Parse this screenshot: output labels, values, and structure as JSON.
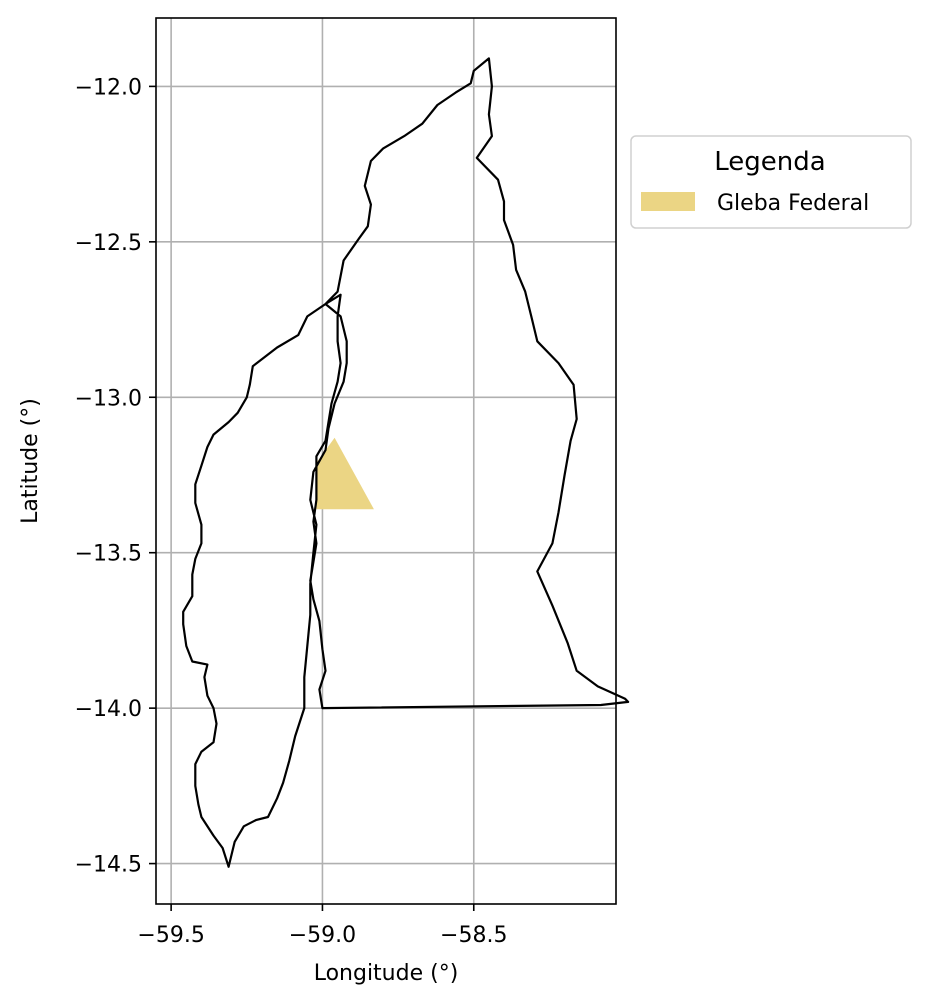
{
  "chart_data": {
    "type": "map",
    "xlabel": "Longitude (°)",
    "ylabel": "Latitude (°)",
    "xlim": [
      -59.55,
      -58.03
    ],
    "ylim": [
      -14.63,
      -11.78
    ],
    "xticks": [
      -59.5,
      -59.0,
      -58.5
    ],
    "xtick_labels": [
      "−59.5",
      "−59.0",
      "−58.5"
    ],
    "yticks": [
      -12.0,
      -12.5,
      -13.0,
      -13.5,
      -14.0,
      -14.5
    ],
    "ytick_labels": [
      "−12.0",
      "−12.5",
      "−13.0",
      "−13.5",
      "−14.0",
      "−14.5"
    ],
    "grid": true,
    "legend": {
      "title": "Legenda",
      "placement": "outside-right-top",
      "entries": [
        {
          "label": "Gleba Federal",
          "color": "#ebd584"
        }
      ]
    },
    "layers": [
      {
        "label": "Gleba Federal",
        "type": "polygon",
        "fill": "#ebd584",
        "points": [
          [
            -58.96,
            -13.13
          ],
          [
            -58.83,
            -13.36
          ],
          [
            -59.02,
            -13.36
          ],
          [
            -59.02,
            -13.21
          ]
        ]
      },
      {
        "type": "outline",
        "stroke": "#000000",
        "points": [
          [
            -59.31,
            -14.51
          ],
          [
            -59.33,
            -14.45
          ],
          [
            -59.36,
            -14.41
          ],
          [
            -59.4,
            -14.35
          ],
          [
            -59.41,
            -14.31
          ],
          [
            -59.42,
            -14.25
          ],
          [
            -59.42,
            -14.18
          ],
          [
            -59.4,
            -14.14
          ],
          [
            -59.36,
            -14.11
          ],
          [
            -59.35,
            -14.05
          ],
          [
            -59.36,
            -14.0
          ],
          [
            -59.38,
            -13.96
          ],
          [
            -59.39,
            -13.9
          ],
          [
            -59.38,
            -13.86
          ],
          [
            -59.43,
            -13.85
          ],
          [
            -59.45,
            -13.8
          ],
          [
            -59.46,
            -13.73
          ],
          [
            -59.46,
            -13.69
          ],
          [
            -59.43,
            -13.64
          ],
          [
            -59.43,
            -13.57
          ],
          [
            -59.42,
            -13.52
          ],
          [
            -59.4,
            -13.47
          ],
          [
            -59.4,
            -13.41
          ],
          [
            -59.42,
            -13.34
          ],
          [
            -59.42,
            -13.28
          ],
          [
            -59.4,
            -13.22
          ],
          [
            -59.38,
            -13.16
          ],
          [
            -59.36,
            -13.12
          ],
          [
            -59.31,
            -13.08
          ],
          [
            -59.28,
            -13.05
          ],
          [
            -59.25,
            -13.0
          ],
          [
            -59.24,
            -12.96
          ],
          [
            -59.23,
            -12.9
          ],
          [
            -59.19,
            -12.87
          ],
          [
            -59.15,
            -12.84
          ],
          [
            -59.08,
            -12.8
          ],
          [
            -59.05,
            -12.74
          ],
          [
            -58.99,
            -12.7
          ],
          [
            -58.95,
            -12.66
          ],
          [
            -58.93,
            -12.56
          ],
          [
            -58.88,
            -12.49
          ],
          [
            -58.85,
            -12.45
          ],
          [
            -58.84,
            -12.38
          ],
          [
            -58.86,
            -12.32
          ],
          [
            -58.84,
            -12.24
          ],
          [
            -58.8,
            -12.2
          ],
          [
            -58.73,
            -12.16
          ],
          [
            -58.67,
            -12.12
          ],
          [
            -58.62,
            -12.06
          ],
          [
            -58.56,
            -12.02
          ],
          [
            -58.51,
            -11.99
          ],
          [
            -58.5,
            -11.95
          ],
          [
            -58.45,
            -11.91
          ],
          [
            -58.44,
            -12.0
          ],
          [
            -58.45,
            -12.09
          ],
          [
            -58.44,
            -12.16
          ],
          [
            -58.49,
            -12.23
          ],
          [
            -58.42,
            -12.3
          ],
          [
            -58.4,
            -12.37
          ],
          [
            -58.4,
            -12.43
          ],
          [
            -58.37,
            -12.51
          ],
          [
            -58.36,
            -12.59
          ],
          [
            -58.33,
            -12.66
          ],
          [
            -58.31,
            -12.74
          ],
          [
            -58.29,
            -12.82
          ],
          [
            -58.22,
            -12.89
          ],
          [
            -58.17,
            -12.96
          ],
          [
            -58.16,
            -13.07
          ],
          [
            -58.18,
            -13.14
          ],
          [
            -58.2,
            -13.25
          ],
          [
            -58.22,
            -13.37
          ],
          [
            -58.24,
            -13.47
          ],
          [
            -58.29,
            -13.56
          ],
          [
            -58.24,
            -13.67
          ],
          [
            -58.19,
            -13.79
          ],
          [
            -58.16,
            -13.88
          ],
          [
            -58.09,
            -13.93
          ],
          [
            -58.0,
            -13.97
          ],
          [
            -57.99,
            -13.98
          ],
          [
            -58.08,
            -13.99
          ],
          [
            -59.0,
            -14.0
          ],
          [
            -59.01,
            -13.94
          ],
          [
            -58.99,
            -13.88
          ],
          [
            -59.0,
            -13.81
          ],
          [
            -59.01,
            -13.72
          ],
          [
            -59.03,
            -13.65
          ],
          [
            -59.04,
            -13.59
          ],
          [
            -59.03,
            -13.53
          ],
          [
            -59.02,
            -13.47
          ],
          [
            -59.03,
            -13.4
          ],
          [
            -59.02,
            -13.33
          ],
          [
            -59.02,
            -13.26
          ],
          [
            -59.02,
            -13.19
          ],
          [
            -58.99,
            -13.14
          ],
          [
            -58.98,
            -13.08
          ],
          [
            -58.97,
            -13.02
          ],
          [
            -58.95,
            -12.95
          ],
          [
            -58.94,
            -12.89
          ],
          [
            -58.95,
            -12.82
          ],
          [
            -58.95,
            -12.74
          ],
          [
            -58.94,
            -12.67
          ],
          [
            -58.99,
            -12.7
          ],
          [
            -58.94,
            -12.74
          ],
          [
            -58.92,
            -12.82
          ],
          [
            -58.92,
            -12.89
          ],
          [
            -58.93,
            -12.95
          ],
          [
            -58.96,
            -13.02
          ],
          [
            -58.98,
            -13.1
          ],
          [
            -58.99,
            -13.17
          ],
          [
            -59.03,
            -13.24
          ],
          [
            -59.04,
            -13.33
          ],
          [
            -59.02,
            -13.41
          ],
          [
            -59.03,
            -13.5
          ],
          [
            -59.04,
            -13.6
          ],
          [
            -59.04,
            -13.7
          ],
          [
            -59.05,
            -13.8
          ],
          [
            -59.06,
            -13.9
          ],
          [
            -59.06,
            -14.0
          ],
          [
            -59.09,
            -14.09
          ],
          [
            -59.11,
            -14.17
          ],
          [
            -59.13,
            -14.24
          ],
          [
            -59.15,
            -14.29
          ],
          [
            -59.18,
            -14.35
          ],
          [
            -59.22,
            -14.36
          ],
          [
            -59.26,
            -14.38
          ],
          [
            -59.29,
            -14.43
          ],
          [
            -59.31,
            -14.51
          ]
        ]
      }
    ]
  }
}
